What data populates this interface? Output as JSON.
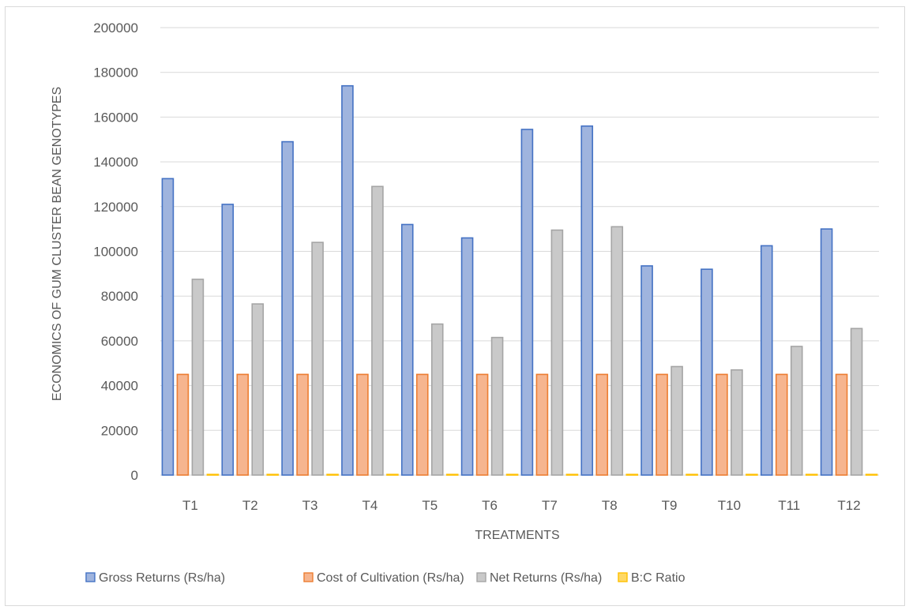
{
  "chart_data": {
    "type": "bar",
    "title": "",
    "xlabel": "TREATMENTS",
    "ylabel": "ECONOMICS OF GUM CLUSTER BEAN GENOTYPES",
    "ylim": [
      0,
      200000
    ],
    "yticks": [
      "0",
      "20000",
      "40000",
      "60000",
      "80000",
      "100000",
      "120000",
      "140000",
      "160000",
      "180000",
      "200000"
    ],
    "grid": true,
    "legend_position": "bottom",
    "categories": [
      "T1",
      "T2",
      "T3",
      "T4",
      "T5",
      "T6",
      "T7",
      "T8",
      "T9",
      "T10",
      "T11",
      "T12"
    ],
    "series": [
      {
        "name": "Gross Returns (Rs/ha)",
        "color": "#4472c4",
        "fill": "#9fb4de",
        "values": [
          132500,
          121000,
          149000,
          174000,
          112000,
          106000,
          154500,
          156000,
          93500,
          92000,
          102500,
          110000
        ]
      },
      {
        "name": "Cost of Cultivation (Rs/ha)",
        "color": "#ed7d31",
        "fill": "#f6b58f",
        "values": [
          45000,
          45000,
          45000,
          45000,
          45000,
          45000,
          45000,
          45000,
          45000,
          45000,
          45000,
          45000
        ]
      },
      {
        "name": "Net Returns (Rs/ha)",
        "color": "#a5a5a5",
        "fill": "#c9c9c9",
        "values": [
          87500,
          76500,
          104000,
          129000,
          67500,
          61500,
          109500,
          111000,
          48500,
          47000,
          57500,
          65500
        ]
      },
      {
        "name": "B:C Ratio",
        "color": "#ffc000",
        "fill": "#ffd966",
        "values": [
          2.9,
          2.7,
          3.3,
          3.9,
          2.5,
          2.4,
          3.4,
          3.5,
          2.1,
          2.0,
          2.3,
          2.4
        ]
      }
    ]
  }
}
